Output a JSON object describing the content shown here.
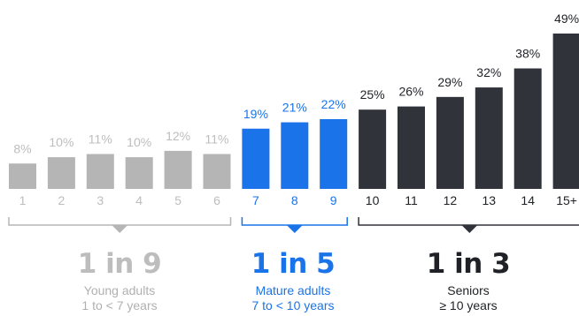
{
  "chart_data": {
    "type": "bar",
    "categories": [
      "1",
      "2",
      "3",
      "4",
      "5",
      "6",
      "7",
      "8",
      "9",
      "10",
      "11",
      "12",
      "13",
      "14",
      "15+"
    ],
    "values": [
      8,
      10,
      11,
      10,
      12,
      11,
      19,
      21,
      22,
      25,
      26,
      29,
      32,
      38,
      49
    ],
    "value_labels": [
      "8%",
      "10%",
      "11%",
      "10%",
      "12%",
      "11%",
      "19%",
      "21%",
      "22%",
      "25%",
      "26%",
      "29%",
      "32%",
      "38%",
      "49%"
    ],
    "ylim": [
      0,
      49
    ],
    "groups": [
      {
        "ratio": "1 in 9",
        "label": "Young adults",
        "range": "1 to < 7 years",
        "color": "#b5b5b5",
        "text_color": "#bdbdbd",
        "categories": [
          "1",
          "2",
          "3",
          "4",
          "5",
          "6"
        ]
      },
      {
        "ratio": "1 in 5",
        "label": "Mature adults",
        "range": "7 to < 10 years",
        "color": "#1a73e8",
        "text_color": "#1a73e8",
        "categories": [
          "7",
          "8",
          "9"
        ]
      },
      {
        "ratio": "1 in 3",
        "label": "Seniors",
        "range": "≥ 10 years",
        "color": "#30333a",
        "text_color": "#1f2126",
        "categories": [
          "10",
          "11",
          "12",
          "13",
          "14",
          "15+"
        ]
      }
    ]
  }
}
